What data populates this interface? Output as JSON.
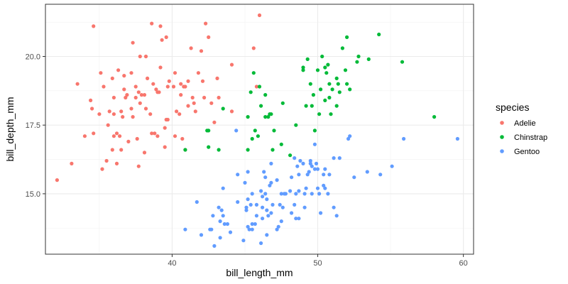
{
  "chart_data": {
    "type": "scatter",
    "xlabel": "bill_length_mm",
    "ylabel": "bill_depth_mm",
    "xlim": [
      31.3,
      60.7
    ],
    "ylim": [
      12.8,
      21.9
    ],
    "x_ticks": [
      40,
      50,
      60
    ],
    "y_ticks": [
      15.0,
      17.5,
      20.0
    ],
    "x_tick_labels": [
      "40",
      "50",
      "60"
    ],
    "y_tick_labels": [
      "15.0",
      "17.5",
      "20.0"
    ],
    "grid": true,
    "legend": {
      "title": "species",
      "position": "right"
    },
    "series": [
      {
        "name": "Adelie",
        "color": "#F8766D",
        "points": [
          [
            32.1,
            15.5
          ],
          [
            33.1,
            16.1
          ],
          [
            33.5,
            19.0
          ],
          [
            34.0,
            17.1
          ],
          [
            34.4,
            18.4
          ],
          [
            34.5,
            18.1
          ],
          [
            34.6,
            21.1
          ],
          [
            34.6,
            17.2
          ],
          [
            35.0,
            17.9
          ],
          [
            35.1,
            19.4
          ],
          [
            35.2,
            15.9
          ],
          [
            35.3,
            18.9
          ],
          [
            35.5,
            16.2
          ],
          [
            35.6,
            17.5
          ],
          [
            35.7,
            18.0
          ],
          [
            35.9,
            19.2
          ],
          [
            35.9,
            16.6
          ],
          [
            36.0,
            18.5
          ],
          [
            36.0,
            17.9
          ],
          [
            36.0,
            17.1
          ],
          [
            36.2,
            16.1
          ],
          [
            36.2,
            17.2
          ],
          [
            36.3,
            19.5
          ],
          [
            36.4,
            17.1
          ],
          [
            36.5,
            18.0
          ],
          [
            36.5,
            16.6
          ],
          [
            36.6,
            17.8
          ],
          [
            36.7,
            18.8
          ],
          [
            36.7,
            19.3
          ],
          [
            36.8,
            18.5
          ],
          [
            36.9,
            18.6
          ],
          [
            37.0,
            16.9
          ],
          [
            37.2,
            18.1
          ],
          [
            37.2,
            19.4
          ],
          [
            37.3,
            17.8
          ],
          [
            37.3,
            20.5
          ],
          [
            37.5,
            18.9
          ],
          [
            37.5,
            18.5
          ],
          [
            37.6,
            17.0
          ],
          [
            37.7,
            18.7
          ],
          [
            37.7,
            16.0
          ],
          [
            37.8,
            18.3
          ],
          [
            37.8,
            20.0
          ],
          [
            37.9,
            18.6
          ],
          [
            38.1,
            18.6
          ],
          [
            38.1,
            16.5
          ],
          [
            38.2,
            18.1
          ],
          [
            38.2,
            20.0
          ],
          [
            38.3,
            19.2
          ],
          [
            38.5,
            17.9
          ],
          [
            38.6,
            21.2
          ],
          [
            38.6,
            17.2
          ],
          [
            38.7,
            19.0
          ],
          [
            38.8,
            17.2
          ],
          [
            38.9,
            18.8
          ],
          [
            39.0,
            17.1
          ],
          [
            39.0,
            18.7
          ],
          [
            39.1,
            18.7
          ],
          [
            39.2,
            19.6
          ],
          [
            39.2,
            21.1
          ],
          [
            39.3,
            20.6
          ],
          [
            39.5,
            16.7
          ],
          [
            39.5,
            17.4
          ],
          [
            39.6,
            17.7
          ],
          [
            39.6,
            20.7
          ],
          [
            39.7,
            17.7
          ],
          [
            39.7,
            18.9
          ],
          [
            39.8,
            19.1
          ],
          [
            40.1,
            18.9
          ],
          [
            40.2,
            17.1
          ],
          [
            40.2,
            19.4
          ],
          [
            40.3,
            18.0
          ],
          [
            40.5,
            17.9
          ],
          [
            40.6,
            18.6
          ],
          [
            40.6,
            19.0
          ],
          [
            40.7,
            17.0
          ],
          [
            40.8,
            18.9
          ],
          [
            40.9,
            16.6
          ],
          [
            40.9,
            18.9
          ],
          [
            41.1,
            18.2
          ],
          [
            41.1,
            19.1
          ],
          [
            41.3,
            20.3
          ],
          [
            41.4,
            18.5
          ],
          [
            41.5,
            18.3
          ],
          [
            41.6,
            18.0
          ],
          [
            41.8,
            19.4
          ],
          [
            42.0,
            20.2
          ],
          [
            42.1,
            19.1
          ],
          [
            42.2,
            18.5
          ],
          [
            42.3,
            21.2
          ],
          [
            42.5,
            20.7
          ],
          [
            42.7,
            18.3
          ],
          [
            42.9,
            17.6
          ],
          [
            43.1,
            19.2
          ],
          [
            43.2,
            18.5
          ],
          [
            44.1,
            19.7
          ],
          [
            44.1,
            18.0
          ],
          [
            45.6,
            20.3
          ],
          [
            45.8,
            18.9
          ],
          [
            46.0,
            21.5
          ]
        ]
      },
      {
        "name": "Chinstrap",
        "color": "#00BA38",
        "points": [
          [
            40.9,
            16.6
          ],
          [
            42.4,
            17.3
          ],
          [
            42.5,
            16.7
          ],
          [
            42.5,
            17.3
          ],
          [
            43.2,
            16.6
          ],
          [
            43.5,
            18.1
          ],
          [
            45.2,
            17.8
          ],
          [
            45.2,
            16.6
          ],
          [
            45.4,
            18.7
          ],
          [
            45.5,
            17.0
          ],
          [
            45.6,
            19.4
          ],
          [
            45.7,
            17.3
          ],
          [
            45.9,
            17.1
          ],
          [
            46.0,
            18.9
          ],
          [
            46.1,
            18.2
          ],
          [
            46.4,
            18.6
          ],
          [
            46.4,
            17.8
          ],
          [
            46.6,
            17.8
          ],
          [
            46.7,
            17.9
          ],
          [
            46.8,
            17.9
          ],
          [
            46.9,
            16.6
          ],
          [
            47.0,
            17.3
          ],
          [
            47.5,
            16.8
          ],
          [
            47.6,
            18.3
          ],
          [
            48.1,
            16.4
          ],
          [
            48.5,
            17.5
          ],
          [
            49.0,
            19.5
          ],
          [
            49.0,
            19.6
          ],
          [
            49.2,
            18.2
          ],
          [
            49.3,
            19.9
          ],
          [
            49.5,
            19.0
          ],
          [
            49.6,
            18.2
          ],
          [
            49.7,
            18.6
          ],
          [
            49.8,
            17.3
          ],
          [
            50.0,
            19.5
          ],
          [
            50.1,
            17.9
          ],
          [
            50.2,
            18.8
          ],
          [
            50.3,
            20.0
          ],
          [
            50.5,
            19.6
          ],
          [
            50.5,
            18.4
          ],
          [
            50.6,
            19.4
          ],
          [
            50.7,
            19.7
          ],
          [
            50.8,
            18.5
          ],
          [
            50.8,
            19.0
          ],
          [
            50.9,
            17.9
          ],
          [
            51.0,
            18.8
          ],
          [
            51.3,
            19.2
          ],
          [
            51.3,
            18.2
          ],
          [
            51.4,
            19.0
          ],
          [
            51.5,
            18.7
          ],
          [
            51.7,
            20.3
          ],
          [
            51.9,
            19.5
          ],
          [
            52.0,
            19.0
          ],
          [
            52.0,
            20.7
          ],
          [
            52.2,
            18.8
          ],
          [
            52.7,
            19.8
          ],
          [
            52.8,
            20.0
          ],
          [
            53.5,
            19.9
          ],
          [
            54.2,
            20.8
          ],
          [
            55.8,
            19.8
          ],
          [
            58.0,
            17.8
          ]
        ]
      },
      {
        "name": "Gentoo",
        "color": "#619CFF",
        "points": [
          [
            40.9,
            13.7
          ],
          [
            41.7,
            14.7
          ],
          [
            42.0,
            13.5
          ],
          [
            42.6,
            13.7
          ],
          [
            42.7,
            13.7
          ],
          [
            42.8,
            14.2
          ],
          [
            42.9,
            13.1
          ],
          [
            43.2,
            14.5
          ],
          [
            43.3,
            13.4
          ],
          [
            43.3,
            14.0
          ],
          [
            43.4,
            14.4
          ],
          [
            43.5,
            14.2
          ],
          [
            43.5,
            15.2
          ],
          [
            43.6,
            13.9
          ],
          [
            43.8,
            13.9
          ],
          [
            44.0,
            13.6
          ],
          [
            44.4,
            17.3
          ],
          [
            44.5,
            14.7
          ],
          [
            44.5,
            15.7
          ],
          [
            44.9,
            13.3
          ],
          [
            45.0,
            15.4
          ],
          [
            45.1,
            14.5
          ],
          [
            45.1,
            14.4
          ],
          [
            45.2,
            13.8
          ],
          [
            45.2,
            14.8
          ],
          [
            45.2,
            15.8
          ],
          [
            45.3,
            13.7
          ],
          [
            45.4,
            14.6
          ],
          [
            45.5,
            13.7
          ],
          [
            45.5,
            13.9
          ],
          [
            45.5,
            15.0
          ],
          [
            45.7,
            13.9
          ],
          [
            45.8,
            14.6
          ],
          [
            45.8,
            14.2
          ],
          [
            46.1,
            13.2
          ],
          [
            46.1,
            15.1
          ],
          [
            46.2,
            14.1
          ],
          [
            46.2,
            14.9
          ],
          [
            46.2,
            14.5
          ],
          [
            46.3,
            15.8
          ],
          [
            46.4,
            15.6
          ],
          [
            46.4,
            15.0
          ],
          [
            46.5,
            13.5
          ],
          [
            46.5,
            14.4
          ],
          [
            46.5,
            14.8
          ],
          [
            46.6,
            14.2
          ],
          [
            46.7,
            15.3
          ],
          [
            46.8,
            14.3
          ],
          [
            46.8,
            15.4
          ],
          [
            46.8,
            16.1
          ],
          [
            46.9,
            14.6
          ],
          [
            47.2,
            13.7
          ],
          [
            47.2,
            15.5
          ],
          [
            47.3,
            13.8
          ],
          [
            47.4,
            14.6
          ],
          [
            47.5,
            14.0
          ],
          [
            47.5,
            15.0
          ],
          [
            47.6,
            14.5
          ],
          [
            47.7,
            15.0
          ],
          [
            47.8,
            15.0
          ],
          [
            48.1,
            15.1
          ],
          [
            48.2,
            14.3
          ],
          [
            48.2,
            15.6
          ],
          [
            48.4,
            14.6
          ],
          [
            48.4,
            16.3
          ],
          [
            48.5,
            14.1
          ],
          [
            48.5,
            15.0
          ],
          [
            48.6,
            16.0
          ],
          [
            48.7,
            14.1
          ],
          [
            48.7,
            15.1
          ],
          [
            48.7,
            15.7
          ],
          [
            48.8,
            16.2
          ],
          [
            49.0,
            16.1
          ],
          [
            49.1,
            14.5
          ],
          [
            49.1,
            15.0
          ],
          [
            49.2,
            15.2
          ],
          [
            49.3,
            15.7
          ],
          [
            49.4,
            15.8
          ],
          [
            49.5,
            16.1
          ],
          [
            49.5,
            16.2
          ],
          [
            49.6,
            15.0
          ],
          [
            49.6,
            16.0
          ],
          [
            49.8,
            15.9
          ],
          [
            49.8,
            16.8
          ],
          [
            49.9,
            16.1
          ],
          [
            50.0,
            15.2
          ],
          [
            50.0,
            15.9
          ],
          [
            50.1,
            15.0
          ],
          [
            50.2,
            14.3
          ],
          [
            50.4,
            15.3
          ],
          [
            50.4,
            15.7
          ],
          [
            50.5,
            15.2
          ],
          [
            50.5,
            15.9
          ],
          [
            50.7,
            15.0
          ],
          [
            50.8,
            15.7
          ],
          [
            51.1,
            14.5
          ],
          [
            51.1,
            16.3
          ],
          [
            51.3,
            14.2
          ],
          [
            51.5,
            16.3
          ],
          [
            52.1,
            17.0
          ],
          [
            52.2,
            17.1
          ],
          [
            52.5,
            15.6
          ],
          [
            53.4,
            15.8
          ],
          [
            54.3,
            15.7
          ],
          [
            55.1,
            16.0
          ],
          [
            55.9,
            17.0
          ],
          [
            59.6,
            17.0
          ]
        ]
      }
    ]
  }
}
